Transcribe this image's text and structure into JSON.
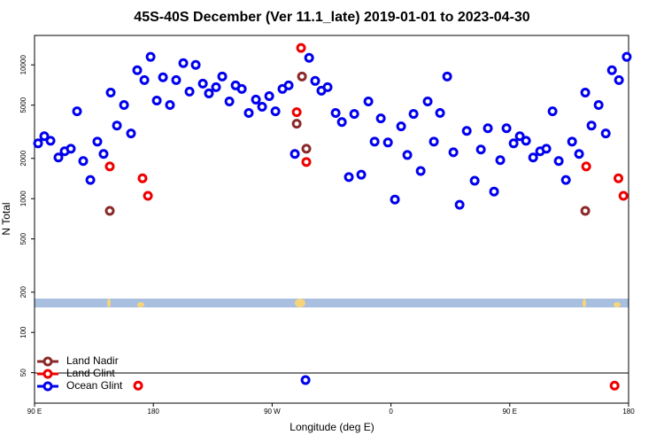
{
  "chart_data": {
    "type": "scatter",
    "title": "45S-40S December (Ver 11.1_late)   2019-01-01 to 2023-04-30",
    "x_label": "Longitude (deg E)",
    "y_label": "N Total",
    "xlim": [
      90,
      540
    ],
    "xticks": [
      {
        "value": 90,
        "label": "90 E"
      },
      180,
      {
        "value": 270,
        "label": "90 W"
      },
      {
        "value": 360,
        "label": "0"
      },
      {
        "value": 450,
        "label": "90 E"
      },
      {
        "value": 540,
        "label": "180"
      }
    ],
    "ylim": [
      29.6,
      16600
    ],
    "log_scale": true,
    "yticks": [
      50,
      100,
      200,
      500,
      1000,
      2000,
      5000,
      10000
    ],
    "legend": "lower-left",
    "series": [
      {
        "name": "Land Nadir",
        "color": "#8b2a2a",
        "x": [
          147.0,
          288.6,
          292.6,
          295.9,
          507.2
        ],
        "values": [
          810,
          3630,
          8190,
          2360,
          810
        ]
      },
      {
        "name": "Land Glint",
        "color": "#ee0000",
        "x": [
          147.0,
          171.8,
          175.9,
          288.6,
          291.9,
          295.9,
          168.5,
          507.9,
          532.3,
          536.1,
          529.4
        ],
        "values": [
          1740,
          1420,
          1050,
          4430,
          13390,
          1880,
          40,
          1740,
          1420,
          1050,
          40
        ]
      },
      {
        "name": "Ocean Glint",
        "color": "#0000ee",
        "x": [
          92.7,
          97.4,
          102.1,
          108.1,
          112.8,
          117.5,
          122.2,
          126.9,
          132.3,
          137.6,
          142.3,
          147.7,
          152.4,
          157.8,
          163.1,
          167.8,
          173.2,
          177.9,
          182.6,
          187.3,
          192.6,
          197.3,
          202.7,
          207.4,
          212.1,
          217.5,
          222.1,
          227.5,
          232.2,
          237.6,
          242.3,
          247.0,
          252.3,
          257.7,
          262.4,
          267.8,
          272.5,
          277.8,
          282.5,
          287.2,
          298.0,
          302.6,
          307.3,
          312.0,
          318.1,
          322.8,
          328.1,
          332.2,
          337.5,
          342.9,
          347.6,
          352.3,
          357.7,
          363.0,
          367.7,
          372.4,
          377.1,
          382.5,
          387.8,
          392.5,
          397.2,
          402.6,
          407.3,
          412.0,
          417.4,
          423.4,
          428.1,
          433.4,
          438.1,
          442.8,
          447.5,
          452.9,
          457.6,
          462.3,
          467.7,
          473.0,
          477.7,
          482.4,
          487.1,
          492.5,
          497.2,
          502.5,
          507.2,
          511.9,
          517.3,
          522.7,
          527.4,
          532.7,
          538.6,
          295.3
        ],
        "values": [
          2590,
          2930,
          2710,
          2030,
          2260,
          2360,
          4500,
          1910,
          1380,
          2670,
          2160,
          6210,
          3520,
          5010,
          3070,
          9120,
          7700,
          11480,
          5410,
          8070,
          5010,
          7700,
          10310,
          6310,
          10000,
          7240,
          6120,
          6810,
          8190,
          5330,
          7030,
          6610,
          4370,
          5500,
          4860,
          5840,
          4500,
          6610,
          7030,
          2160,
          11300,
          7590,
          6410,
          6810,
          4370,
          3740,
          1450,
          4300,
          1510,
          5330,
          2670,
          3980,
          2630,
          985,
          3470,
          2120,
          4300,
          1610,
          5330,
          2670,
          4370,
          8190,
          2220,
          900,
          3210,
          1360,
          2330,
          3360,
          1130,
          1940,
          3360,
          2590,
          2930,
          2710,
          2030,
          2260,
          2360,
          4500,
          1910,
          1380,
          2670,
          2160,
          6210,
          3520,
          5010,
          3070,
          9120,
          7700,
          11480,
          44
        ]
      }
    ]
  }
}
